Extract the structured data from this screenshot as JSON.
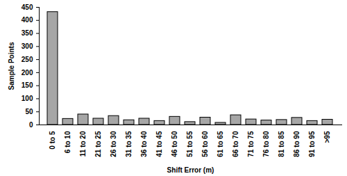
{
  "chart_data": {
    "type": "bar",
    "x_label": "Shift Error (m)",
    "y_label": "Sample Points",
    "categories": [
      "0 to 5",
      "6 to 10",
      "11 to 20",
      "21 to 25",
      "26 to 30",
      "31 to 35",
      "36 to 40",
      "41 to 45",
      "46 to 50",
      "51 to 55",
      "56 to 60",
      "61 to 65",
      "66 to 70",
      "71 to 75",
      "76 to 80",
      "81 to 85",
      "86 to 90",
      "91 to 95",
      ">95"
    ],
    "values": [
      432,
      23,
      40,
      24,
      34,
      18,
      24,
      15,
      31,
      11,
      28,
      8,
      37,
      21,
      17,
      19,
      27,
      15,
      20
    ],
    "color": "#a6a6a6",
    "ylim": [
      0,
      450
    ],
    "yticks": [
      0,
      50,
      100,
      150,
      200,
      250,
      300,
      350,
      400,
      450
    ],
    "grid": false
  }
}
